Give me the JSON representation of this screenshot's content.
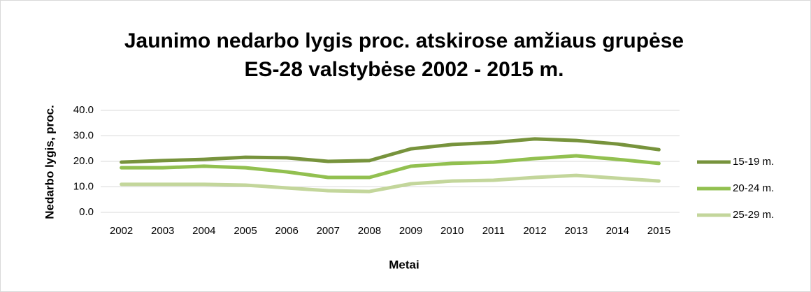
{
  "chart_data": {
    "type": "line",
    "title": [
      "Jaunimo nedarbo lygis proc. atskirose amžiaus grupėse",
      "ES-28 valstybėse 2002 - 2015 m."
    ],
    "x_label": "Metai",
    "y_label": "Nedarbo lygis, proc.",
    "categories": [
      "2002",
      "2003",
      "2004",
      "2005",
      "2006",
      "2007",
      "2008",
      "2009",
      "2010",
      "2011",
      "2012",
      "2013",
      "2014",
      "2015"
    ],
    "series": [
      {
        "name": "15-19 m.",
        "color": "#77933c",
        "values": [
          19.7,
          20.3,
          20.8,
          21.6,
          21.4,
          20.0,
          20.3,
          24.9,
          26.6,
          27.4,
          28.8,
          28.2,
          26.8,
          24.6
        ]
      },
      {
        "name": "20-24 m.",
        "color": "#92c050",
        "values": [
          17.5,
          17.5,
          18.1,
          17.5,
          15.9,
          13.7,
          13.7,
          18.1,
          19.2,
          19.7,
          21.1,
          22.2,
          20.8,
          19.2
        ]
      },
      {
        "name": "25-29 m.",
        "color": "#c3d69b",
        "values": [
          11.0,
          11.0,
          11.0,
          10.7,
          9.6,
          8.5,
          8.2,
          11.2,
          12.3,
          12.6,
          13.7,
          14.5,
          13.4,
          12.3
        ]
      }
    ],
    "ylim": [
      0,
      40
    ],
    "yticks": [
      {
        "value": 0,
        "label": "0.0"
      },
      {
        "value": 10,
        "label": "10.0"
      },
      {
        "value": 20,
        "label": "20.0"
      },
      {
        "value": 30,
        "label": "30.0"
      },
      {
        "value": 40,
        "label": "40.0"
      }
    ],
    "grid": true,
    "legend": "right"
  }
}
